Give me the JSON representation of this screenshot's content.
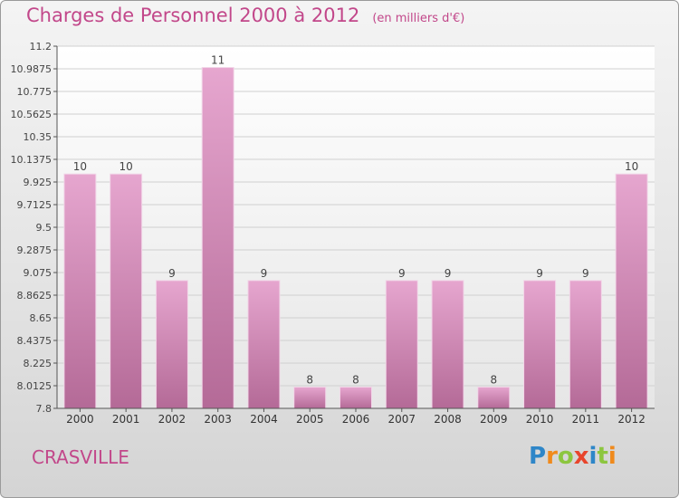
{
  "title": "Charges de Personnel 2000 à 2012",
  "unit": "(en milliers d'€)",
  "commune": "CRASVILLE",
  "logo": {
    "letters": [
      "P",
      "r",
      "o",
      "x",
      "i",
      "t",
      "i"
    ],
    "colors": [
      "#2e86c8",
      "#f08a1c",
      "#8cc63f",
      "#e8452c",
      "#2e86c8",
      "#8cc63f",
      "#f08a1c"
    ]
  },
  "colors": {
    "bar_top": "#e6a6cf",
    "bar_bottom": "#b46a97",
    "text": "#c2478a"
  },
  "chart_data": {
    "type": "bar",
    "title": "Charges de Personnel 2000 à 2012",
    "subtitle": "(en milliers d'€)",
    "categories": [
      "2000",
      "2001",
      "2002",
      "2003",
      "2004",
      "2005",
      "2006",
      "2007",
      "2008",
      "2009",
      "2010",
      "2011",
      "2012"
    ],
    "values": [
      10,
      10,
      9,
      11,
      9,
      8,
      8,
      9,
      9,
      8,
      9,
      9,
      10
    ],
    "data_labels": [
      "10",
      "10",
      "9",
      "11",
      "9",
      "8",
      "8",
      "9",
      "9",
      "8",
      "9",
      "9",
      "10"
    ],
    "ylim": [
      7.8,
      11.2
    ],
    "yticks": [
      "11.2",
      "10.9875",
      "10.775",
      "10.5625",
      "10.35",
      "10.1375",
      "9.925",
      "9.7125",
      "9.5",
      "9.2875",
      "9.075",
      "8.8625",
      "8.65",
      "8.4375",
      "8.225",
      "8.0125",
      "7.8"
    ],
    "grid": true,
    "legend": "none"
  }
}
